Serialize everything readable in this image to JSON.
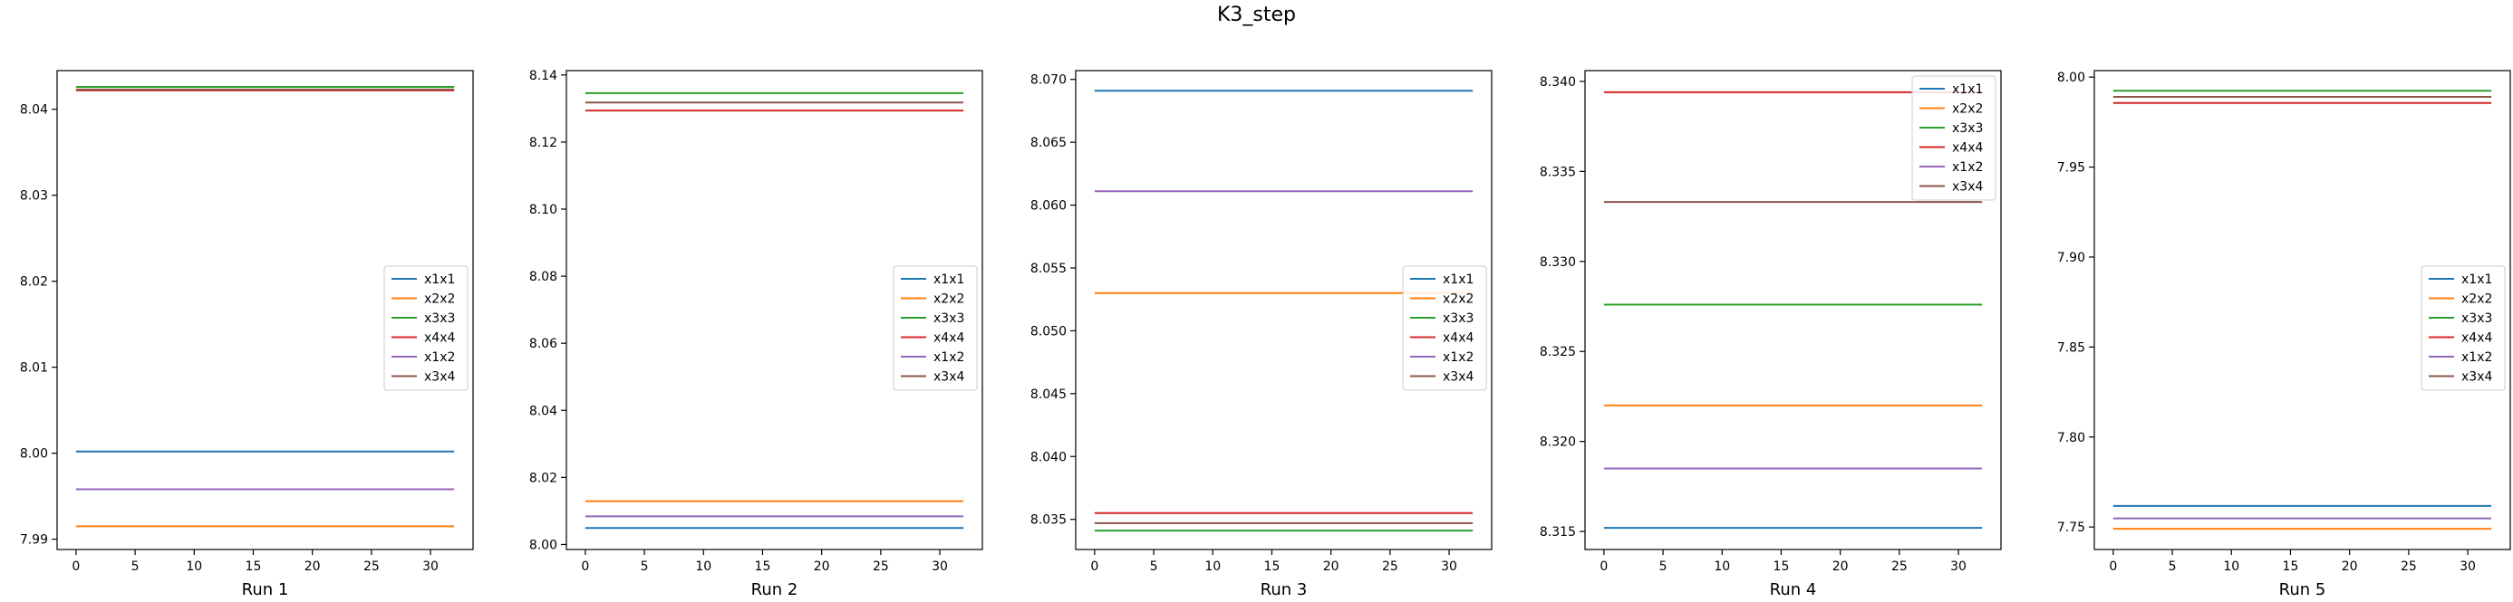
{
  "figure": {
    "suptitle": "K3_step"
  },
  "legend_entries": [
    "x1x1",
    "x2x2",
    "x3x3",
    "x4x4",
    "x1x2",
    "x3x4"
  ],
  "colors": {
    "x1x1": "#1f77b4",
    "x2x2": "#ff7f0e",
    "x3x3": "#2ca02c",
    "x4x4": "#d62728",
    "x1x2": "#9467bd",
    "x3x4": "#8c564b"
  },
  "chart_data": [
    {
      "type": "line",
      "xlabel": "Run 1",
      "xlim": [
        -1.6,
        33.6
      ],
      "xticks": [
        0,
        5,
        10,
        15,
        20,
        25,
        30
      ],
      "ylim": [
        7.9888,
        8.0445
      ],
      "yticks": [
        7.99,
        8.0,
        8.01,
        8.02,
        8.03,
        8.04
      ],
      "yticklabels": [
        "7.99",
        "8.00",
        "8.01",
        "8.02",
        "8.03",
        "8.04"
      ],
      "x_range": [
        0,
        32
      ],
      "legend_position": "center-right",
      "series": [
        {
          "name": "x1x1",
          "value": 8.0002
        },
        {
          "name": "x2x2",
          "value": 7.9915
        },
        {
          "name": "x3x3",
          "value": 8.0426
        },
        {
          "name": "x4x4",
          "value": 8.0422
        },
        {
          "name": "x1x2",
          "value": 7.9958
        },
        {
          "name": "x3x4",
          "value": 8.0423
        }
      ]
    },
    {
      "type": "line",
      "xlabel": "Run 2",
      "xlim": [
        -1.6,
        33.6
      ],
      "xticks": [
        0,
        5,
        10,
        15,
        20,
        25,
        30
      ],
      "ylim": [
        7.9985,
        8.1413
      ],
      "yticks": [
        8.0,
        8.02,
        8.04,
        8.06,
        8.08,
        8.1,
        8.12,
        8.14
      ],
      "yticklabels": [
        "8.00",
        "8.02",
        "8.04",
        "8.06",
        "8.08",
        "8.10",
        "8.12",
        "8.14"
      ],
      "x_range": [
        0,
        32
      ],
      "legend_position": "center-right",
      "series": [
        {
          "name": "x1x1",
          "value": 8.0049
        },
        {
          "name": "x2x2",
          "value": 8.0129
        },
        {
          "name": "x3x3",
          "value": 8.1346
        },
        {
          "name": "x4x4",
          "value": 8.1294
        },
        {
          "name": "x1x2",
          "value": 8.0084
        },
        {
          "name": "x3x4",
          "value": 8.1318
        }
      ]
    },
    {
      "type": "line",
      "xlabel": "Run 3",
      "xlim": [
        -1.6,
        33.6
      ],
      "xticks": [
        0,
        5,
        10,
        15,
        20,
        25,
        30
      ],
      "ylim": [
        8.0326,
        8.0707
      ],
      "yticks": [
        8.035,
        8.04,
        8.045,
        8.05,
        8.055,
        8.06,
        8.065,
        8.07
      ],
      "yticklabels": [
        "8.035",
        "8.040",
        "8.045",
        "8.050",
        "8.055",
        "8.060",
        "8.065",
        "8.070"
      ],
      "x_range": [
        0,
        32
      ],
      "legend_position": "center-right",
      "series": [
        {
          "name": "x1x1",
          "value": 8.0691
        },
        {
          "name": "x2x2",
          "value": 8.053
        },
        {
          "name": "x3x3",
          "value": 8.0341
        },
        {
          "name": "x4x4",
          "value": 8.0355
        },
        {
          "name": "x1x2",
          "value": 8.0611
        },
        {
          "name": "x3x4",
          "value": 8.0347
        }
      ]
    },
    {
      "type": "line",
      "xlabel": "Run 4",
      "xlim": [
        -1.6,
        33.6
      ],
      "xticks": [
        0,
        5,
        10,
        15,
        20,
        25,
        30
      ],
      "ylim": [
        8.314,
        8.3406
      ],
      "yticks": [
        8.315,
        8.32,
        8.325,
        8.33,
        8.335,
        8.34
      ],
      "yticklabels": [
        "8.315",
        "8.320",
        "8.325",
        "8.330",
        "8.335",
        "8.340"
      ],
      "x_range": [
        0,
        32
      ],
      "legend_position": "top-right",
      "series": [
        {
          "name": "x1x1",
          "value": 8.3152
        },
        {
          "name": "x2x2",
          "value": 8.322
        },
        {
          "name": "x3x3",
          "value": 8.3276
        },
        {
          "name": "x4x4",
          "value": 8.3394
        },
        {
          "name": "x1x2",
          "value": 8.3185
        },
        {
          "name": "x3x4",
          "value": 8.3333
        }
      ]
    },
    {
      "type": "line",
      "xlabel": "Run 5",
      "xlim": [
        -1.6,
        33.6
      ],
      "xticks": [
        0,
        5,
        10,
        15,
        20,
        25,
        30
      ],
      "ylim": [
        7.7375,
        8.0036
      ],
      "yticks": [
        7.75,
        7.8,
        7.85,
        7.9,
        7.95,
        8.0
      ],
      "yticklabels": [
        "7.75",
        "7.80",
        "7.85",
        "7.90",
        "7.95",
        "8.00"
      ],
      "x_range": [
        0,
        32
      ],
      "legend_position": "center-right",
      "series": [
        {
          "name": "x1x1",
          "value": 7.7617
        },
        {
          "name": "x2x2",
          "value": 7.749
        },
        {
          "name": "x3x3",
          "value": 7.9924
        },
        {
          "name": "x4x4",
          "value": 7.9856
        },
        {
          "name": "x1x2",
          "value": 7.7548
        },
        {
          "name": "x3x4",
          "value": 7.989
        }
      ]
    }
  ]
}
